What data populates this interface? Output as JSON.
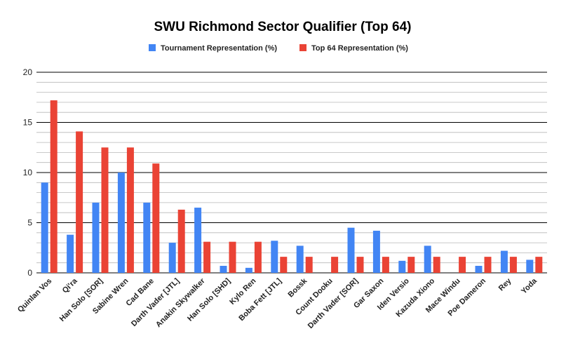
{
  "chart_data": {
    "type": "bar",
    "title": "SWU Richmond Sector Qualifier (Top 64)",
    "xlabel": "",
    "ylabel": "",
    "ylim": [
      0,
      20
    ],
    "yticks": [
      0,
      5,
      10,
      15,
      20
    ],
    "minor_grid_step": 1,
    "grid": true,
    "legend_position": "top",
    "categories": [
      "Quinlan Vos",
      "Qi'ra",
      "Han Solo [SOR]",
      "Sabine Wren",
      "Cad Bane",
      "Darth Vader [JTL]",
      "Anakin Skywalker",
      "Han Solo [SHD]",
      "Kylo Ren",
      "Boba Fett [JTL]",
      "Bossk",
      "Count Dooku",
      "Darth Vader [SOR]",
      "Gar Saxon",
      "Iden Versio",
      "Kazuda Xiono",
      "Mace Windu",
      "Poe Dameron",
      "Rey",
      "Yoda"
    ],
    "series": [
      {
        "name": "Tournament Representation (%)",
        "color": "#4285f4",
        "values": [
          9.0,
          3.8,
          7.0,
          10.0,
          7.0,
          3.0,
          6.5,
          0.7,
          0.5,
          3.2,
          2.7,
          0,
          4.5,
          4.2,
          1.2,
          2.7,
          0,
          0.7,
          2.2,
          1.3
        ]
      },
      {
        "name": "Top 64 Representation (%)",
        "color": "#ea4335",
        "values": [
          17.2,
          14.1,
          12.5,
          12.5,
          10.9,
          6.3,
          3.1,
          3.1,
          3.1,
          1.6,
          1.6,
          1.6,
          1.6,
          1.6,
          1.6,
          1.6,
          1.6,
          1.6,
          1.6,
          1.6
        ]
      }
    ]
  }
}
